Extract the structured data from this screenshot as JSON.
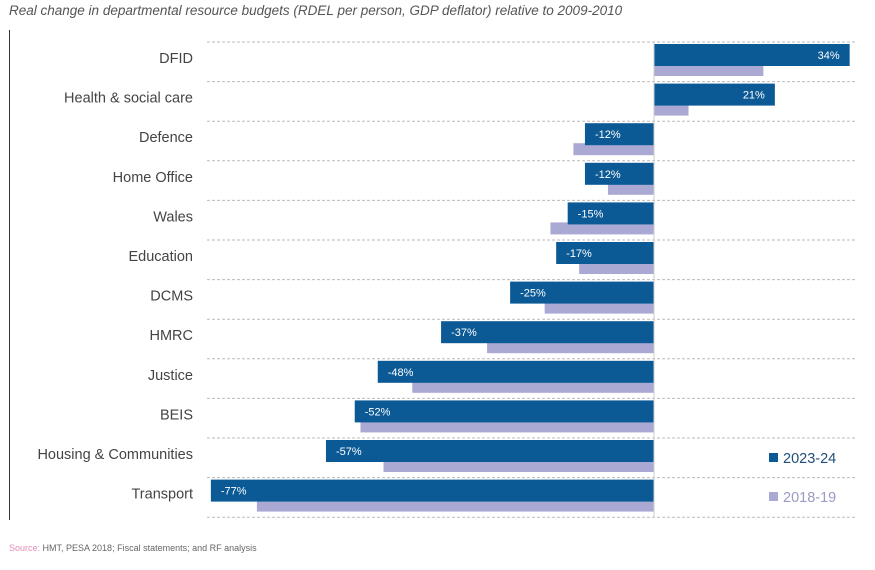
{
  "chart_data": {
    "type": "bar",
    "orientation": "horizontal",
    "title": "Real change in departmental resource budgets (RDEL per person, GDP deflator) relative to 2009-2010",
    "categories": [
      "DFID",
      "Health & social care",
      "Defence",
      "Home Office",
      "Wales",
      "Education",
      "DCMS",
      "HMRC",
      "Justice",
      "BEIS",
      "Housing & Communities",
      "Transport"
    ],
    "series": [
      {
        "name": "2023-24",
        "color": "#0b5a96",
        "values": [
          34,
          21,
          -12,
          -12,
          -15,
          -17,
          -25,
          -37,
          -48,
          -52,
          -57,
          -77
        ],
        "labels": [
          "34%",
          "21%",
          "-12%",
          "-12%",
          "-15%",
          "-17%",
          "-25%",
          "-37%",
          "-48%",
          "-52%",
          "-57%",
          "-77%"
        ]
      },
      {
        "name": "2018-19",
        "color": "#a9a9d3",
        "values": [
          19,
          6,
          -14,
          -8,
          -18,
          -13,
          -19,
          -29,
          -42,
          -51,
          -47,
          -69
        ]
      }
    ],
    "xlim": [
      -77,
      34
    ],
    "grid": "horizontal dashed",
    "legend": "bottom-right"
  },
  "source": {
    "label": "Source:",
    "text": " HMT, PESA 2018; Fiscal statements; and RF analysis"
  }
}
